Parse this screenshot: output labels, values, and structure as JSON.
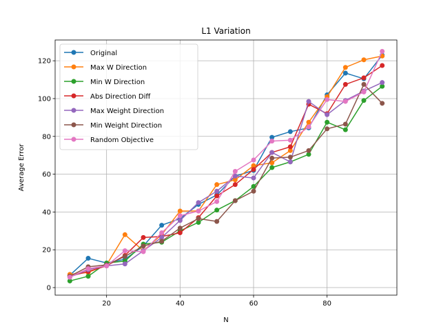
{
  "chart_data": {
    "type": "line",
    "title": "L1 Variation",
    "xlabel": "N",
    "ylabel": "Average Error",
    "xlim": [
      6,
      99
    ],
    "ylim": [
      -4,
      131
    ],
    "xticks": [
      20,
      40,
      60,
      80
    ],
    "yticks": [
      0,
      20,
      40,
      60,
      80,
      100,
      120
    ],
    "grid": true,
    "legend_position": "upper-left",
    "x": [
      10,
      15,
      20,
      25,
      30,
      35,
      40,
      45,
      50,
      55,
      60,
      65,
      70,
      75,
      80,
      85,
      90,
      95
    ],
    "series": [
      {
        "name": "Original",
        "color": "#1f77b4",
        "values": [
          6.5,
          15.5,
          13.0,
          15.0,
          22.0,
          33.0,
          36.5,
          44.0,
          49.0,
          59.0,
          62.0,
          79.5,
          82.5,
          84.5,
          102.0,
          113.5,
          110.5,
          123.0
        ]
      },
      {
        "name": "Max W Direction",
        "color": "#ff7f0e",
        "values": [
          7.0,
          8.0,
          12.0,
          28.0,
          19.5,
          28.0,
          40.5,
          40.5,
          54.5,
          57.0,
          64.5,
          66.0,
          72.5,
          87.5,
          101.0,
          116.5,
          120.5,
          122.5
        ]
      },
      {
        "name": "Min W Direction",
        "color": "#2ca02c",
        "values": [
          3.5,
          6.0,
          13.0,
          14.0,
          23.0,
          24.0,
          30.0,
          34.5,
          41.0,
          46.0,
          53.5,
          63.5,
          66.5,
          70.5,
          87.5,
          83.5,
          99.0,
          106.5
        ]
      },
      {
        "name": "Abs Direction Diff",
        "color": "#d62728",
        "values": [
          6.0,
          8.5,
          11.5,
          17.0,
          26.5,
          27.0,
          29.0,
          37.0,
          48.5,
          54.5,
          62.5,
          71.5,
          74.5,
          97.0,
          92.0,
          107.5,
          111.0,
          117.5
        ]
      },
      {
        "name": "Max Weight Direction",
        "color": "#9467bd",
        "values": [
          5.5,
          9.5,
          11.5,
          12.5,
          19.5,
          26.5,
          35.5,
          45.0,
          51.0,
          59.0,
          58.0,
          71.5,
          66.5,
          98.5,
          91.5,
          99.0,
          104.0,
          108.5
        ]
      },
      {
        "name": "Min Weight Direction",
        "color": "#8c564b",
        "values": [
          6.0,
          11.0,
          12.0,
          16.5,
          22.0,
          24.5,
          31.5,
          36.5,
          35.0,
          46.0,
          51.0,
          68.5,
          69.0,
          72.5,
          84.0,
          86.5,
          107.5,
          97.5
        ]
      },
      {
        "name": "Random Objective",
        "color": "#e377c2",
        "values": [
          5.5,
          10.0,
          11.5,
          19.5,
          19.0,
          29.0,
          38.0,
          40.5,
          45.5,
          61.5,
          67.5,
          77.5,
          78.0,
          85.0,
          99.5,
          98.5,
          103.5,
          125.0
        ]
      }
    ]
  }
}
